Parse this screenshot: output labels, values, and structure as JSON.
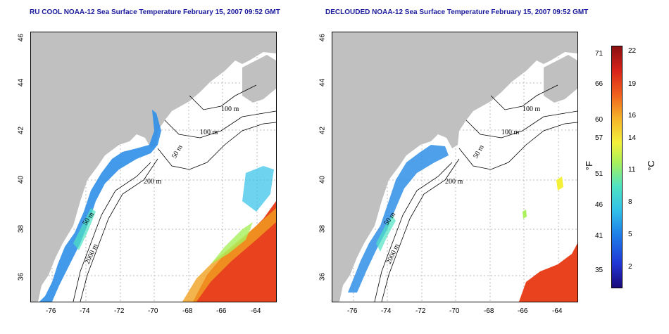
{
  "panels": [
    {
      "title": "RU COOL NOAA-12 Sea Surface Temperature February 15, 2007 09:52 GMT",
      "contours": [
        "100 m",
        "100 m",
        "50 m",
        "200 m",
        "50 m",
        "2000 m"
      ]
    },
    {
      "title": "DECLOUDED NOAA-12 Sea Surface Temperature February 15, 2007 09:52 GMT",
      "contours": [
        "100 m",
        "100 m",
        "50 m",
        "200 m",
        "50 m",
        "2000 m"
      ]
    }
  ],
  "axes": {
    "lon_ticks": [
      "-76",
      "-74",
      "-72",
      "-70",
      "-68",
      "-66",
      "-64"
    ],
    "lat_ticks": [
      "46",
      "44",
      "42",
      "40",
      "38",
      "36"
    ]
  },
  "colorbar": {
    "fahrenheit_label": "°F",
    "celsius_label": "°C",
    "fahrenheit_ticks": [
      "71",
      "66",
      "60",
      "57",
      "51",
      "46",
      "41",
      "35"
    ],
    "celsius_ticks": [
      "22",
      "19",
      "16",
      "14",
      "11",
      "8",
      "5",
      "2"
    ]
  },
  "colors": {
    "land": "#c0c0c0",
    "ocean_no_data": "#ffffff",
    "title": "#1a1a9c"
  }
}
